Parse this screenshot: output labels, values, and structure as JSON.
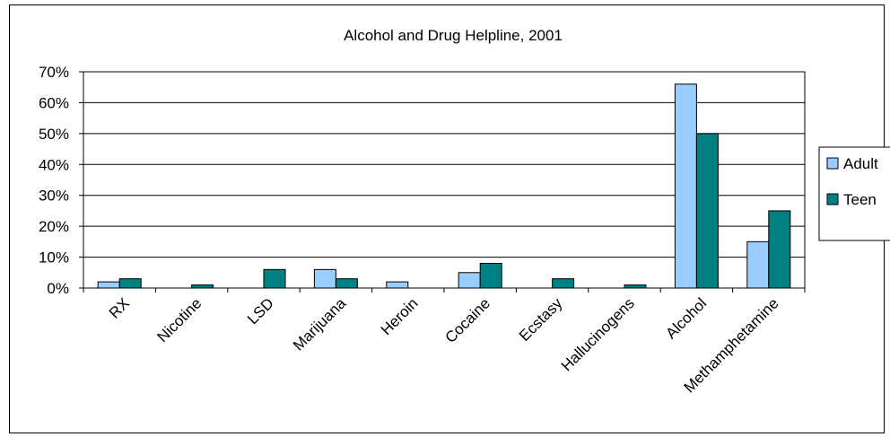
{
  "chart_data": {
    "type": "bar",
    "title": "Alcohol and Drug Helpline, 2001",
    "xlabel": "",
    "ylabel": "",
    "categories": [
      "RX",
      "Nicotine",
      "LSD",
      "Marijuana",
      "Heroin",
      "Cocaine",
      "Ecstasy",
      "Hallucinogens",
      "Alcohol",
      "Methamphetamine"
    ],
    "series": [
      {
        "name": "Adult",
        "color": "#99ccff",
        "values": [
          2,
          0,
          0,
          6,
          2,
          5,
          0,
          0,
          66,
          15
        ]
      },
      {
        "name": "Teen",
        "color": "#008080",
        "values": [
          3,
          1,
          6,
          3,
          0,
          8,
          3,
          1,
          50,
          25
        ]
      }
    ],
    "ylim": [
      0,
      70
    ],
    "yticks": [
      "0%",
      "10%",
      "20%",
      "30%",
      "40%",
      "50%",
      "60%",
      "70%"
    ],
    "grid": true,
    "legend": "right"
  }
}
